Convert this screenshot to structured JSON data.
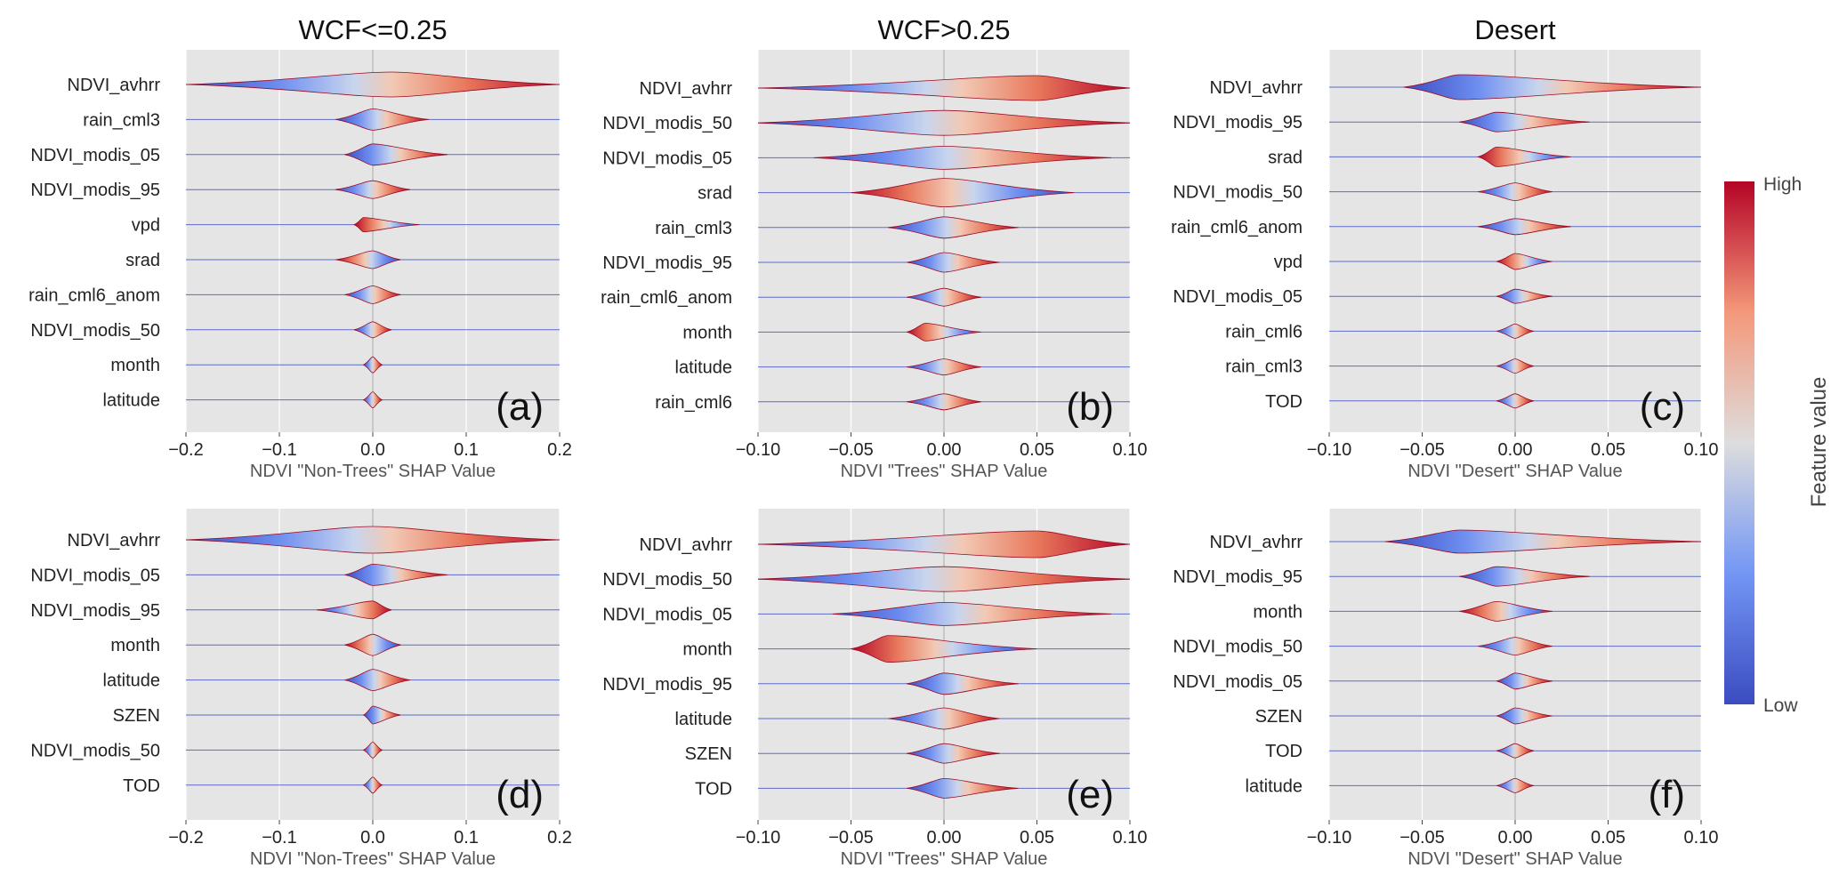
{
  "colorbar": {
    "high_label": "High",
    "low_label": "Low",
    "title": "Feature value",
    "low_color": "#3b4cc0",
    "mid_color": "#dddddd",
    "high_color": "#b40426"
  },
  "chart_data": [
    {
      "type": "violin",
      "panel": "(a)",
      "title": "WCF<=0.25",
      "xlabel": "NDVI \"Non-Trees\" SHAP Value",
      "xlim": [
        -0.2,
        0.2
      ],
      "xticks": [
        -0.2,
        -0.1,
        0.0,
        0.1,
        0.2
      ],
      "xtick_labels": [
        "−0.2",
        "−0.1",
        "0.0",
        "0.1",
        "0.2"
      ],
      "features": [
        "NDVI_avhrr",
        "rain_cml3",
        "NDVI_modis_05",
        "NDVI_modis_95",
        "vpd",
        "srad",
        "rain_cml6_anom",
        "NDVI_modis_50",
        "month",
        "latitude"
      ]
    },
    {
      "type": "violin",
      "panel": "(b)",
      "title": "WCF>0.25",
      "xlabel": "NDVI \"Trees\" SHAP Value",
      "xlim": [
        -0.1,
        0.1
      ],
      "xticks": [
        -0.1,
        -0.05,
        0.0,
        0.05,
        0.1
      ],
      "xtick_labels": [
        "−0.10",
        "−0.05",
        "0.00",
        "0.05",
        "0.10"
      ],
      "features": [
        "NDVI_avhrr",
        "NDVI_modis_50",
        "NDVI_modis_05",
        "srad",
        "rain_cml3",
        "NDVI_modis_95",
        "rain_cml6_anom",
        "month",
        "latitude",
        "rain_cml6"
      ]
    },
    {
      "type": "violin",
      "panel": "(c)",
      "title": "Desert",
      "xlabel": "NDVI \"Desert\" SHAP Value",
      "xlim": [
        -0.1,
        0.1
      ],
      "xticks": [
        -0.1,
        -0.05,
        0.0,
        0.05,
        0.1
      ],
      "xtick_labels": [
        "−0.10",
        "−0.05",
        "0.00",
        "0.05",
        "0.10"
      ],
      "features": [
        "NDVI_avhrr",
        "NDVI_modis_95",
        "srad",
        "NDVI_modis_50",
        "rain_cml6_anom",
        "vpd",
        "NDVI_modis_05",
        "rain_cml6",
        "rain_cml3",
        "TOD"
      ]
    },
    {
      "type": "violin",
      "panel": "(d)",
      "title": "",
      "xlabel": "NDVI \"Non-Trees\" SHAP Value",
      "xlim": [
        -0.2,
        0.2
      ],
      "xticks": [
        -0.2,
        -0.1,
        0.0,
        0.1,
        0.2
      ],
      "xtick_labels": [
        "−0.2",
        "−0.1",
        "0.0",
        "0.1",
        "0.2"
      ],
      "features": [
        "NDVI_avhrr",
        "NDVI_modis_05",
        "NDVI_modis_95",
        "month",
        "latitude",
        "SZEN",
        "NDVI_modis_50",
        "TOD"
      ]
    },
    {
      "type": "violin",
      "panel": "(e)",
      "title": "",
      "xlabel": "NDVI \"Trees\" SHAP Value",
      "xlim": [
        -0.1,
        0.1
      ],
      "xticks": [
        -0.1,
        -0.05,
        0.0,
        0.05,
        0.1
      ],
      "xtick_labels": [
        "−0.10",
        "−0.05",
        "0.00",
        "0.05",
        "0.10"
      ],
      "features": [
        "NDVI_avhrr",
        "NDVI_modis_50",
        "NDVI_modis_05",
        "month",
        "NDVI_modis_95",
        "latitude",
        "SZEN",
        "TOD"
      ]
    },
    {
      "type": "violin",
      "panel": "(f)",
      "title": "",
      "xlabel": "NDVI \"Desert\" SHAP Value",
      "xlim": [
        -0.1,
        0.1
      ],
      "xticks": [
        -0.1,
        -0.05,
        0.0,
        0.05,
        0.1
      ],
      "xtick_labels": [
        "−0.10",
        "−0.05",
        "0.00",
        "0.05",
        "0.10"
      ],
      "features": [
        "NDVI_avhrr",
        "NDVI_modis_95",
        "month",
        "NDVI_modis_50",
        "NDVI_modis_05",
        "SZEN",
        "TOD",
        "latitude"
      ]
    }
  ]
}
